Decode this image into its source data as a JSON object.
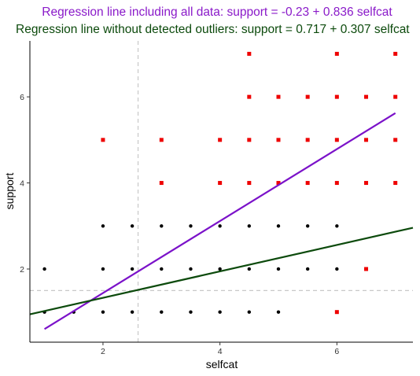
{
  "chart_data": {
    "type": "scatter",
    "title": "Regression line including all data: support  =  -0.23 + 0.836 selfcat",
    "subtitle": "Regression line without detected outliers: support  =  0.717 + 0.307 selfcat",
    "xlabel": "selfcat",
    "ylabel": "support",
    "xlim": [
      0.75,
      7.3
    ],
    "ylim": [
      0.3,
      7.3
    ],
    "x_ticks": [
      2,
      4,
      6
    ],
    "y_ticks": [
      2,
      4,
      6
    ],
    "grid": false,
    "reference_lines": {
      "vertical_x": 2.6,
      "horizontal_y": 1.5
    },
    "series": [
      {
        "color": "#000000",
        "points": [
          [
            1,
            1
          ],
          [
            1,
            2
          ],
          [
            1.5,
            1
          ],
          [
            2,
            1
          ],
          [
            2,
            2
          ],
          [
            2,
            3
          ],
          [
            2.5,
            1
          ],
          [
            2.5,
            2
          ],
          [
            2.5,
            3
          ],
          [
            3,
            1
          ],
          [
            3,
            2
          ],
          [
            3,
            3
          ],
          [
            3.5,
            1
          ],
          [
            3.5,
            2
          ],
          [
            3.5,
            3
          ],
          [
            4,
            1
          ],
          [
            4,
            2
          ],
          [
            4,
            3
          ],
          [
            4.5,
            1
          ],
          [
            4.5,
            2
          ],
          [
            4.5,
            3
          ],
          [
            5,
            1
          ],
          [
            5,
            2
          ],
          [
            5,
            3
          ],
          [
            5.5,
            2
          ],
          [
            5.5,
            3
          ],
          [
            6,
            2
          ],
          [
            6,
            3
          ]
        ]
      },
      {
        "color": "#ee0000",
        "points": [
          [
            2,
            5
          ],
          [
            3,
            4
          ],
          [
            3,
            5
          ],
          [
            4,
            4
          ],
          [
            4,
            5
          ],
          [
            4.5,
            4
          ],
          [
            4.5,
            5
          ],
          [
            4.5,
            6
          ],
          [
            4.5,
            7
          ],
          [
            5,
            4
          ],
          [
            5,
            5
          ],
          [
            5,
            6
          ],
          [
            5.5,
            4
          ],
          [
            5.5,
            5
          ],
          [
            5.5,
            6
          ],
          [
            6,
            1
          ],
          [
            6,
            4
          ],
          [
            6,
            5
          ],
          [
            6,
            6
          ],
          [
            6,
            7
          ],
          [
            6.5,
            2
          ],
          [
            6.5,
            4
          ],
          [
            6.5,
            5
          ],
          [
            6.5,
            6
          ],
          [
            7,
            4
          ],
          [
            7,
            5
          ],
          [
            7,
            6
          ],
          [
            7,
            7
          ]
        ]
      }
    ],
    "regression_lines": [
      {
        "intercept": -0.23,
        "slope": 0.836,
        "x_range": [
          1,
          7
        ],
        "color": "#7b12c9"
      },
      {
        "intercept": 0.717,
        "slope": 0.307,
        "x_range": [
          0.75,
          7.3
        ],
        "color": "#0c4a0c"
      }
    ]
  }
}
